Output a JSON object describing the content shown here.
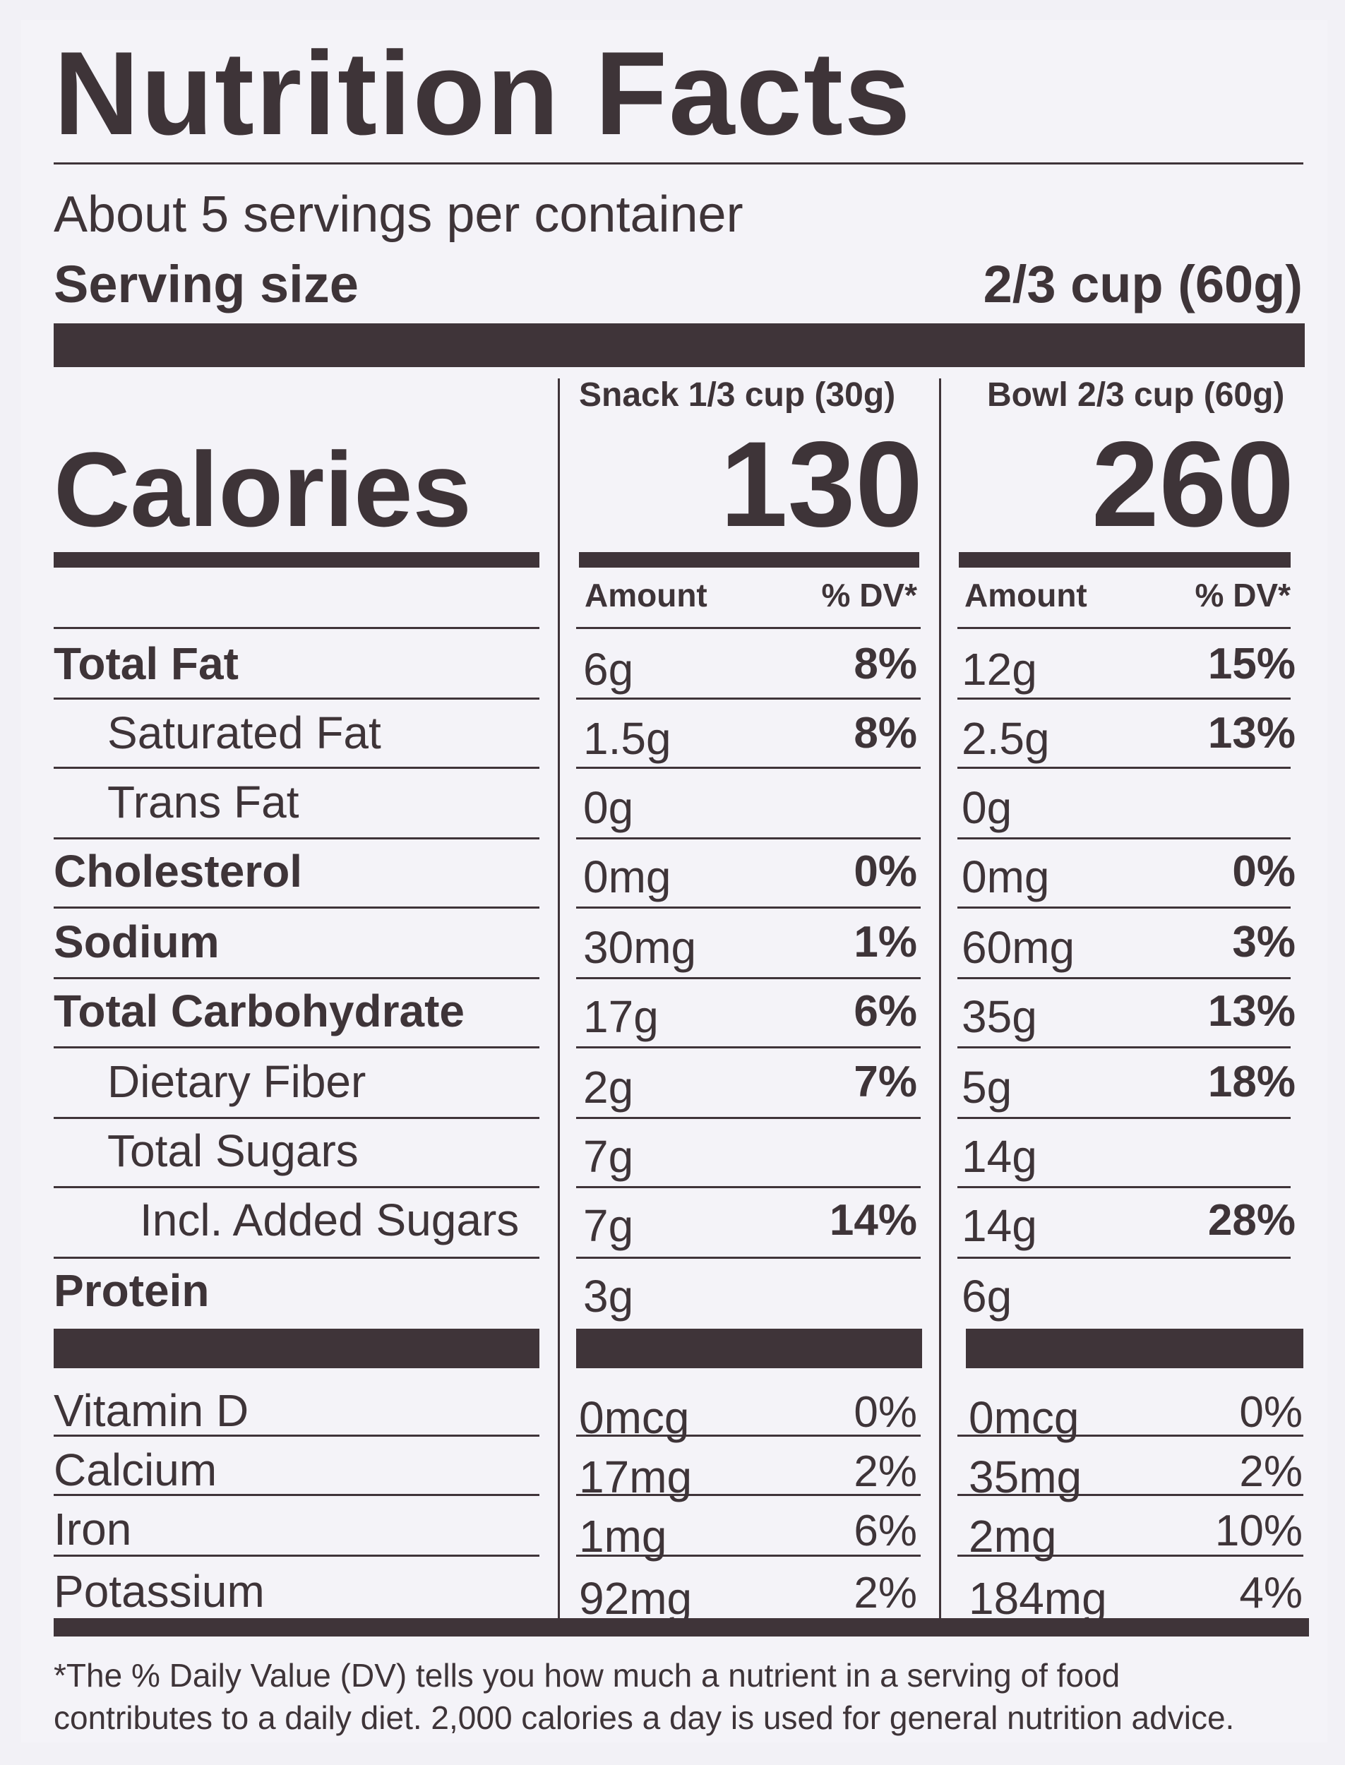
{
  "label": {
    "title": "Nutrition Facts",
    "servings_per_container": "About 5 servings per container",
    "serving_size_label": "Serving size",
    "serving_size_value": "2/3 cup (60g)",
    "columns": [
      {
        "header": "Snack 1/3 cup (30g)",
        "calories": "130"
      },
      {
        "header": "Bowl 2/3 cup (60g)",
        "calories": "260"
      }
    ],
    "calories_label": "Calories",
    "amount_header": "Amount",
    "dv_header": "% DV*",
    "nutrients": [
      {
        "name": "Total Fat",
        "bold": true,
        "indent": 0,
        "snack_amount": "6g",
        "snack_dv": "8%",
        "bowl_amount": "12g",
        "bowl_dv": "15%"
      },
      {
        "name": "Saturated Fat",
        "bold": false,
        "indent": 1,
        "snack_amount": "1.5g",
        "snack_dv": "8%",
        "bowl_amount": "2.5g",
        "bowl_dv": "13%"
      },
      {
        "name": "Trans Fat",
        "bold": false,
        "indent": 1,
        "snack_amount": "0g",
        "snack_dv": "",
        "bowl_amount": "0g",
        "bowl_dv": ""
      },
      {
        "name": "Cholesterol",
        "bold": true,
        "indent": 0,
        "snack_amount": "0mg",
        "snack_dv": "0%",
        "bowl_amount": "0mg",
        "bowl_dv": "0%"
      },
      {
        "name": "Sodium",
        "bold": true,
        "indent": 0,
        "snack_amount": "30mg",
        "snack_dv": "1%",
        "bowl_amount": "60mg",
        "bowl_dv": "3%"
      },
      {
        "name": "Total Carbohydrate",
        "bold": true,
        "indent": 0,
        "snack_amount": "17g",
        "snack_dv": "6%",
        "bowl_amount": "35g",
        "bowl_dv": "13%"
      },
      {
        "name": "Dietary Fiber",
        "bold": false,
        "indent": 1,
        "snack_amount": "2g",
        "snack_dv": "7%",
        "bowl_amount": "5g",
        "bowl_dv": "18%"
      },
      {
        "name": "Total Sugars",
        "bold": false,
        "indent": 1,
        "snack_amount": "7g",
        "snack_dv": "",
        "bowl_amount": "14g",
        "bowl_dv": ""
      },
      {
        "name": "Incl. Added Sugars",
        "bold": false,
        "indent": 2,
        "snack_amount": "7g",
        "snack_dv": "14%",
        "bowl_amount": "14g",
        "bowl_dv": "28%"
      },
      {
        "name": "Protein",
        "bold": true,
        "indent": 0,
        "snack_amount": "3g",
        "snack_dv": "",
        "bowl_amount": "6g",
        "bowl_dv": ""
      }
    ],
    "micronutrients": [
      {
        "name": "Vitamin D",
        "snack_amount": "0mcg",
        "snack_dv": "0%",
        "bowl_amount": "0mcg",
        "bowl_dv": "0%"
      },
      {
        "name": "Calcium",
        "snack_amount": "17mg",
        "snack_dv": "2%",
        "bowl_amount": "35mg",
        "bowl_dv": "2%"
      },
      {
        "name": "Iron",
        "snack_amount": "1mg",
        "snack_dv": "6%",
        "bowl_amount": "2mg",
        "bowl_dv": "10%"
      },
      {
        "name": "Potassium",
        "snack_amount": "92mg",
        "snack_dv": "2%",
        "bowl_amount": "184mg",
        "bowl_dv": "4%"
      }
    ],
    "footnote_line1": "*The % Daily Value (DV) tells you how much a nutrient in a serving of food",
    "footnote_line2": "contributes to a daily diet. 2,000 calories a day is used for general nutrition advice."
  }
}
